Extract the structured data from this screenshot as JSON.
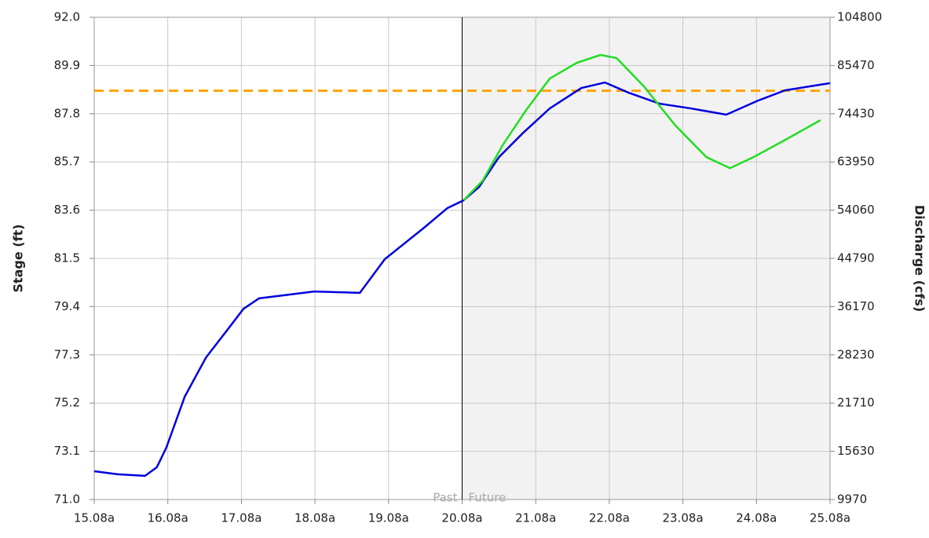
{
  "chart_data": {
    "type": "line",
    "y_label": "Stage (ft)",
    "y2_label": "Discharge (cfs)",
    "past_label": "Past",
    "future_label": "Future",
    "divider_x": 20,
    "threshold": 88.8,
    "threshold_color": "#ffa500",
    "future_shade": "#f2f2f2",
    "xlim": [
      15,
      25
    ],
    "xticks": [
      {
        "value": 15,
        "label": "15.08a"
      },
      {
        "value": 16,
        "label": "16.08a"
      },
      {
        "value": 17,
        "label": "17.08a"
      },
      {
        "value": 18,
        "label": "18.08a"
      },
      {
        "value": 19,
        "label": "19.08a"
      },
      {
        "value": 20,
        "label": "20.08a"
      },
      {
        "value": 21,
        "label": "21.08a"
      },
      {
        "value": 22,
        "label": "22.08a"
      },
      {
        "value": 23,
        "label": "23.08a"
      },
      {
        "value": 24,
        "label": "24.08a"
      },
      {
        "value": 25,
        "label": "25.08a"
      }
    ],
    "ylim": [
      71,
      92
    ],
    "yticks": [
      {
        "value": 71,
        "label": "71.0"
      },
      73.1,
      75.2,
      77.3,
      79.4,
      81.5,
      83.6,
      85.7,
      87.8,
      89.9,
      {
        "value": 92,
        "label": "92.0"
      }
    ],
    "y2ticks": [
      9970,
      15630,
      21710,
      28230,
      36170,
      44790,
      54060,
      63950,
      74430,
      85470,
      104800
    ],
    "grid": true,
    "series": [
      {
        "color": "#0000dd",
        "x": [
          15.0,
          15.32,
          15.69,
          15.85,
          15.98,
          16.23,
          16.52,
          16.81,
          17.03,
          17.24,
          17.67,
          17.99,
          18.61,
          18.95,
          19.48,
          19.8,
          20.02,
          20.23,
          20.5,
          20.82,
          21.19,
          21.62,
          21.94,
          22.26,
          22.68,
          23.11,
          23.59,
          24.02,
          24.39,
          25.0
        ],
        "values": [
          72.23,
          72.1,
          72.03,
          72.4,
          73.26,
          75.48,
          77.19,
          78.39,
          79.31,
          79.76,
          79.93,
          80.06,
          80.0,
          81.47,
          82.83,
          83.69,
          84.03,
          84.61,
          85.91,
          86.94,
          88.03,
          88.92,
          89.16,
          88.72,
          88.24,
          88.03,
          87.76,
          88.37,
          88.82,
          89.13
        ]
      },
      {
        "color": "#22dd22",
        "x": [
          20.02,
          20.28,
          20.55,
          20.87,
          21.19,
          21.56,
          21.88,
          22.1,
          22.47,
          22.9,
          23.32,
          23.64,
          23.96,
          24.39,
          24.87
        ],
        "values": [
          84.03,
          84.89,
          86.43,
          87.96,
          89.33,
          90.02,
          90.36,
          90.22,
          88.99,
          87.28,
          85.91,
          85.43,
          85.91,
          86.66,
          87.52
        ]
      }
    ]
  }
}
